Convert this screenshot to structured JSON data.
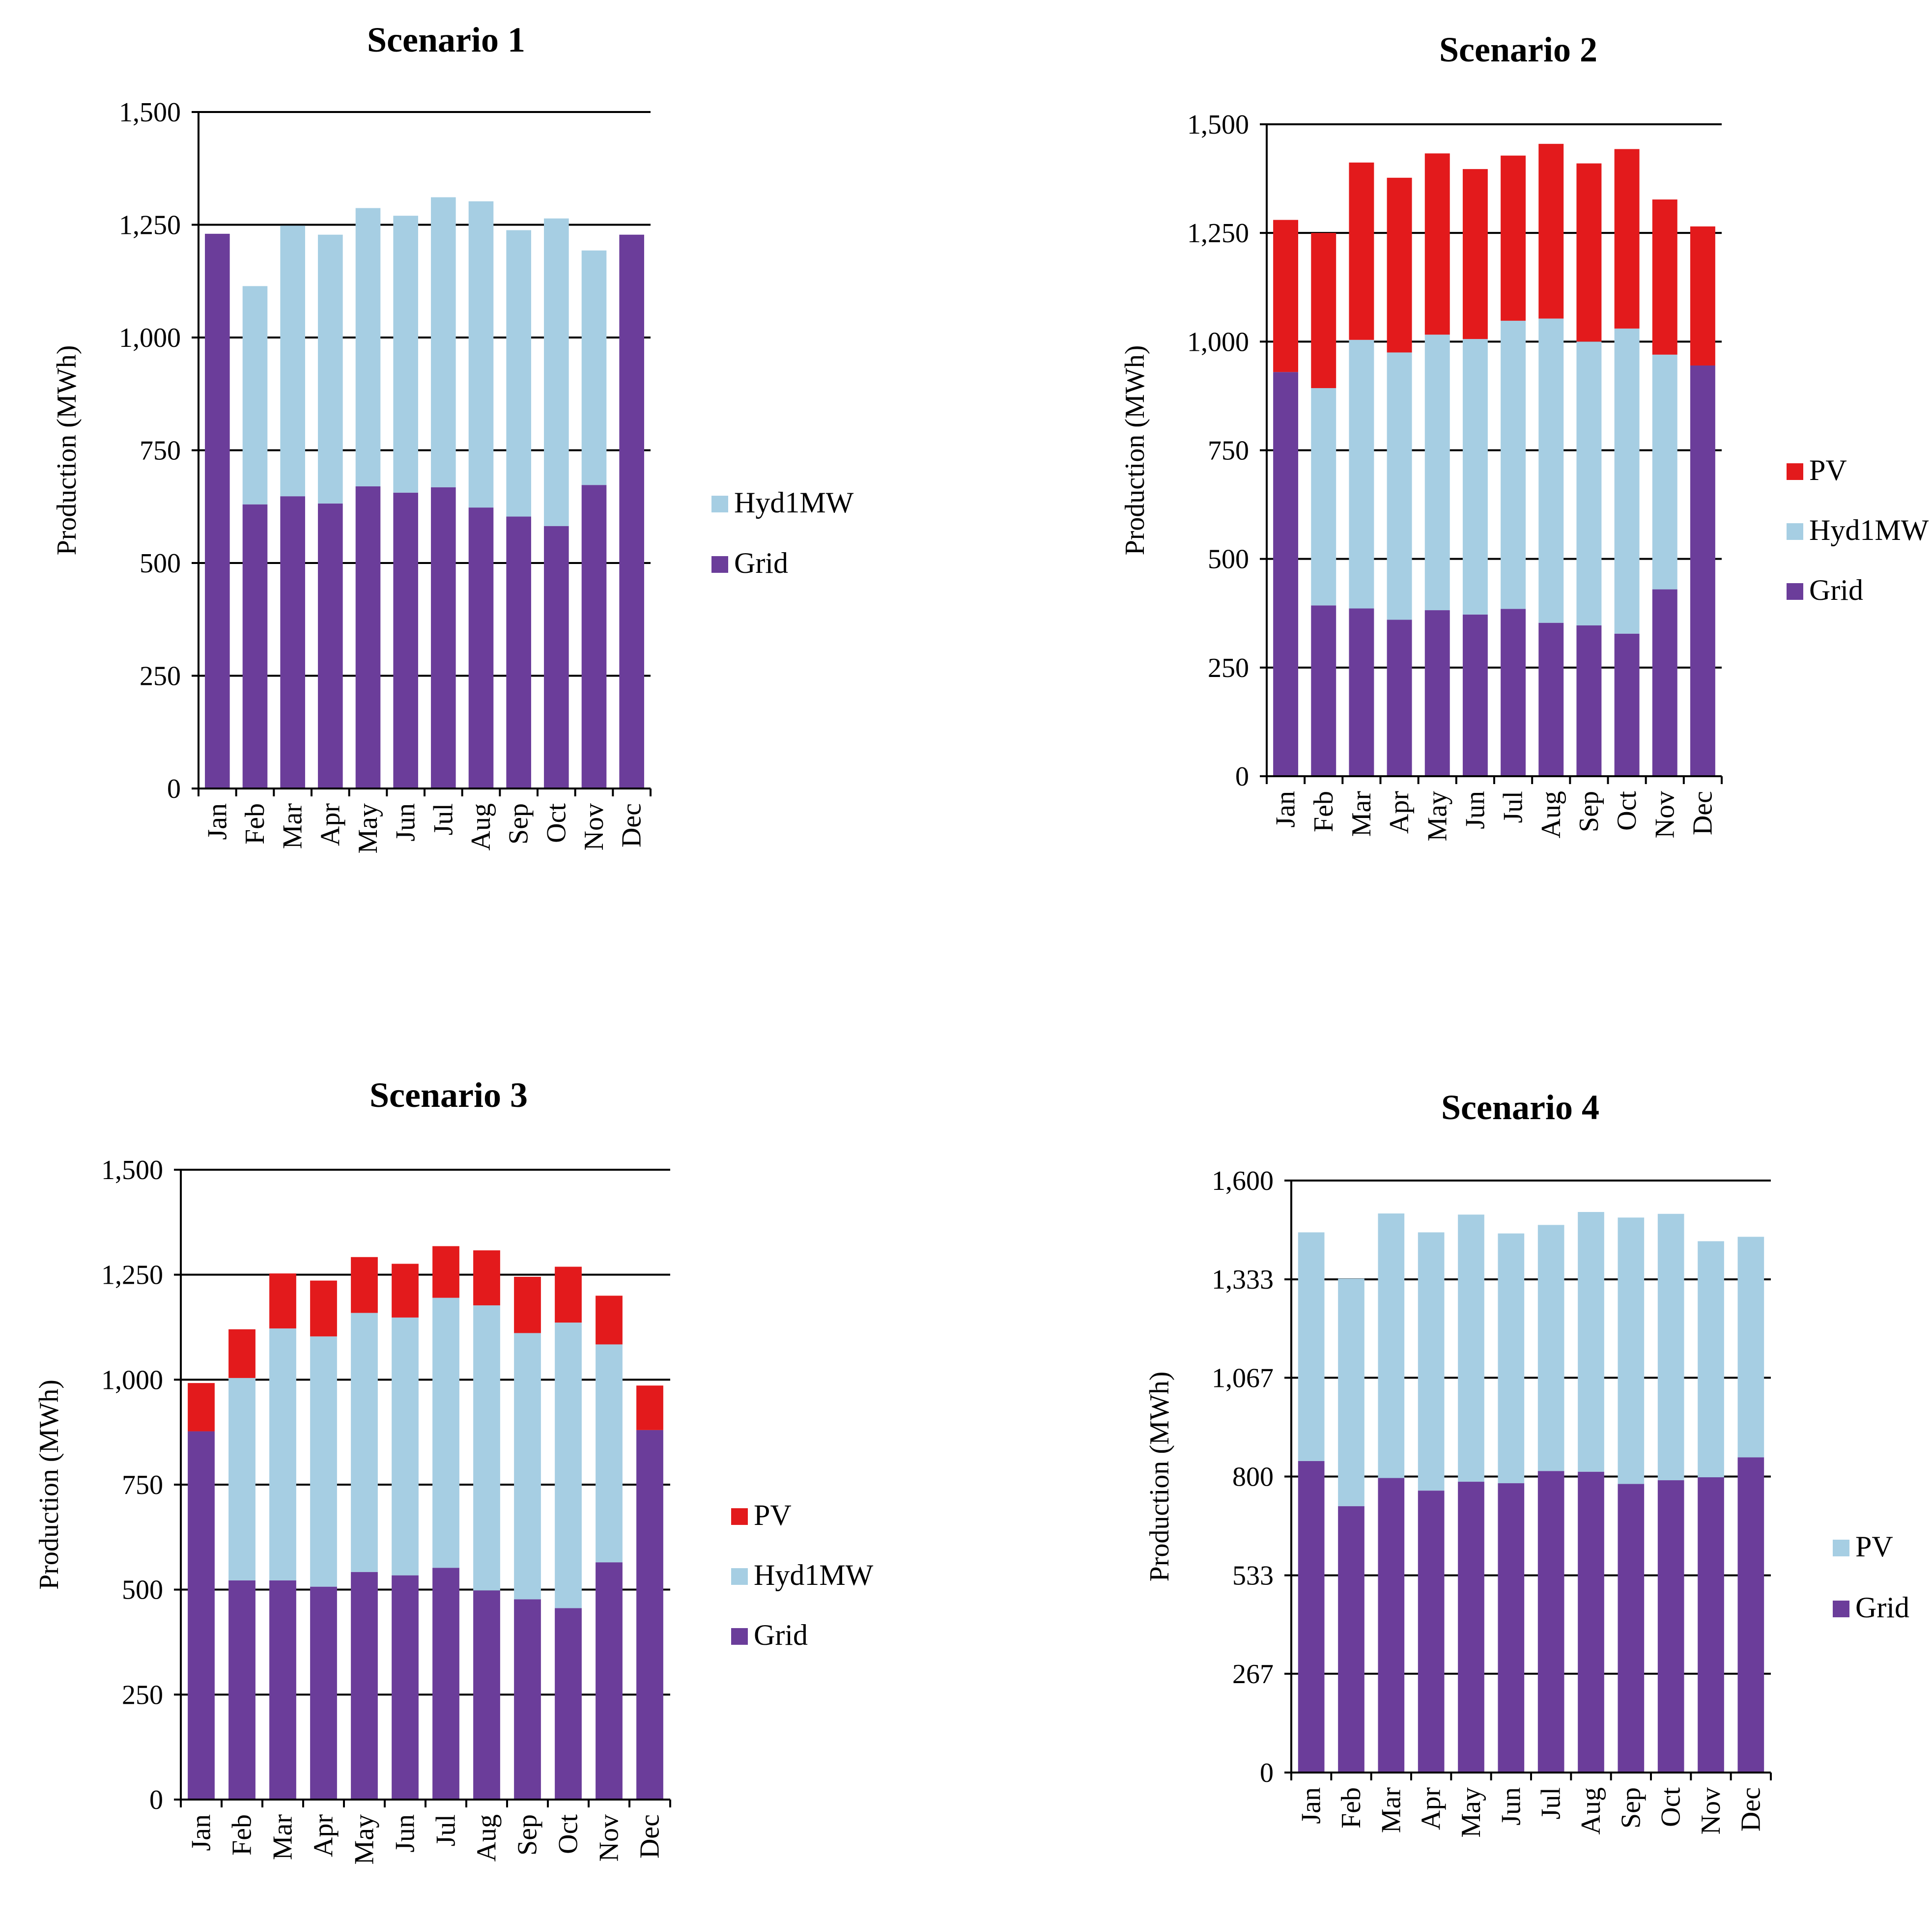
{
  "colors": {
    "grid": "#6b3d9a",
    "hydro": "#a6cee3",
    "pv": "#e31a1c",
    "axis": "#000000",
    "background": "#ffffff"
  },
  "chart_data": [
    {
      "type": "bar",
      "stacked": true,
      "title": "Scenario 1",
      "xlabel": "",
      "ylabel": "Production (MWh)",
      "ylim": [
        0,
        1500
      ],
      "yticks": [
        "0",
        "250",
        "500",
        "750",
        "1,000",
        "1,250",
        "1,500"
      ],
      "yticks_values": [
        0,
        250,
        500,
        750,
        1000,
        1250,
        1500
      ],
      "categories": [
        "Jan",
        "Feb",
        "Mar",
        "Apr",
        "May",
        "Jun",
        "Jul",
        "Aug",
        "Sep",
        "Oct",
        "Nov",
        "Dec"
      ],
      "series": [
        {
          "name": "Grid",
          "color": "#6b3d9a",
          "values": [
            1230,
            630,
            648,
            632,
            670,
            656,
            668,
            623,
            603,
            582,
            673,
            1228
          ]
        },
        {
          "name": "Hyd1MW",
          "color": "#a6cee3",
          "values": [
            0,
            484,
            600,
            596,
            617,
            614,
            643,
            679,
            635,
            682,
            520,
            0
          ]
        }
      ],
      "legend": [
        "Hyd1MW",
        "Grid"
      ],
      "legend_position": "right",
      "grid": true
    },
    {
      "type": "bar",
      "stacked": true,
      "title": "Scenario 2",
      "xlabel": "",
      "ylabel": "Production (MWh)",
      "ylim": [
        0,
        1500
      ],
      "yticks": [
        "0",
        "250",
        "500",
        "750",
        "1,000",
        "1,250",
        "1,500"
      ],
      "yticks_values": [
        0,
        250,
        500,
        750,
        1000,
        1250,
        1500
      ],
      "categories": [
        "Jan",
        "Feb",
        "Mar",
        "Apr",
        "May",
        "Jun",
        "Jul",
        "Aug",
        "Sep",
        "Oct",
        "Nov",
        "Dec"
      ],
      "series": [
        {
          "name": "Grid",
          "color": "#6b3d9a",
          "values": [
            930,
            393,
            386,
            360,
            382,
            372,
            385,
            353,
            347,
            328,
            430,
            945
          ]
        },
        {
          "name": "Hyd1MW",
          "color": "#a6cee3",
          "values": [
            0,
            500,
            618,
            615,
            634,
            634,
            663,
            700,
            653,
            702,
            540,
            0
          ]
        },
        {
          "name": "PV",
          "color": "#e31a1c",
          "values": [
            350,
            357,
            408,
            402,
            417,
            391,
            380,
            402,
            410,
            413,
            357,
            320
          ]
        }
      ],
      "legend": [
        "PV",
        "Hyd1MW",
        "Grid"
      ],
      "legend_position": "right",
      "grid": true
    },
    {
      "type": "bar",
      "stacked": true,
      "title": "Scenario 3",
      "xlabel": "",
      "ylabel": "Production (MWh)",
      "ylim": [
        0,
        1500
      ],
      "yticks": [
        "0",
        "250",
        "500",
        "750",
        "1,000",
        "1,250",
        "1,500"
      ],
      "yticks_values": [
        0,
        250,
        500,
        750,
        1000,
        1250,
        1500
      ],
      "categories": [
        "Jan",
        "Feb",
        "Mar",
        "Apr",
        "May",
        "Jun",
        "Jul",
        "Aug",
        "Sep",
        "Oct",
        "Nov",
        "Dec"
      ],
      "series": [
        {
          "name": "Grid",
          "color": "#6b3d9a",
          "values": [
            877,
            522,
            522,
            507,
            542,
            534,
            552,
            498,
            477,
            456,
            565,
            880
          ]
        },
        {
          "name": "Hyd1MW",
          "color": "#a6cee3",
          "values": [
            0,
            482,
            600,
            596,
            617,
            614,
            643,
            679,
            634,
            680,
            519,
            0
          ]
        },
        {
          "name": "PV",
          "color": "#e31a1c",
          "values": [
            115,
            116,
            131,
            133,
            133,
            128,
            123,
            131,
            134,
            133,
            116,
            106
          ]
        }
      ],
      "legend": [
        "PV",
        "Hyd1MW",
        "Grid"
      ],
      "legend_position": "right",
      "grid": true
    },
    {
      "type": "bar",
      "stacked": true,
      "title": "Scenario 4",
      "xlabel": "",
      "ylabel": "Production (MWh)",
      "ylim": [
        0,
        1600
      ],
      "yticks": [
        "0",
        "267",
        "533",
        "800",
        "1,067",
        "1,333",
        "1,600"
      ],
      "yticks_values": [
        0,
        267,
        533,
        800,
        1067,
        1333,
        1600
      ],
      "categories": [
        "Jan",
        "Feb",
        "Mar",
        "Apr",
        "May",
        "Jun",
        "Jul",
        "Aug",
        "Sep",
        "Oct",
        "Nov",
        "Dec"
      ],
      "series": [
        {
          "name": "Grid",
          "color": "#6b3d9a",
          "values": [
            842,
            720,
            796,
            762,
            786,
            782,
            815,
            813,
            780,
            790,
            798,
            852
          ]
        },
        {
          "name": "PV",
          "color": "#a6cee3",
          "values": [
            618,
            615,
            715,
            698,
            722,
            675,
            665,
            702,
            720,
            720,
            638,
            596
          ]
        }
      ],
      "legend": [
        "PV",
        "Grid"
      ],
      "legend_position": "right",
      "grid": true
    }
  ]
}
